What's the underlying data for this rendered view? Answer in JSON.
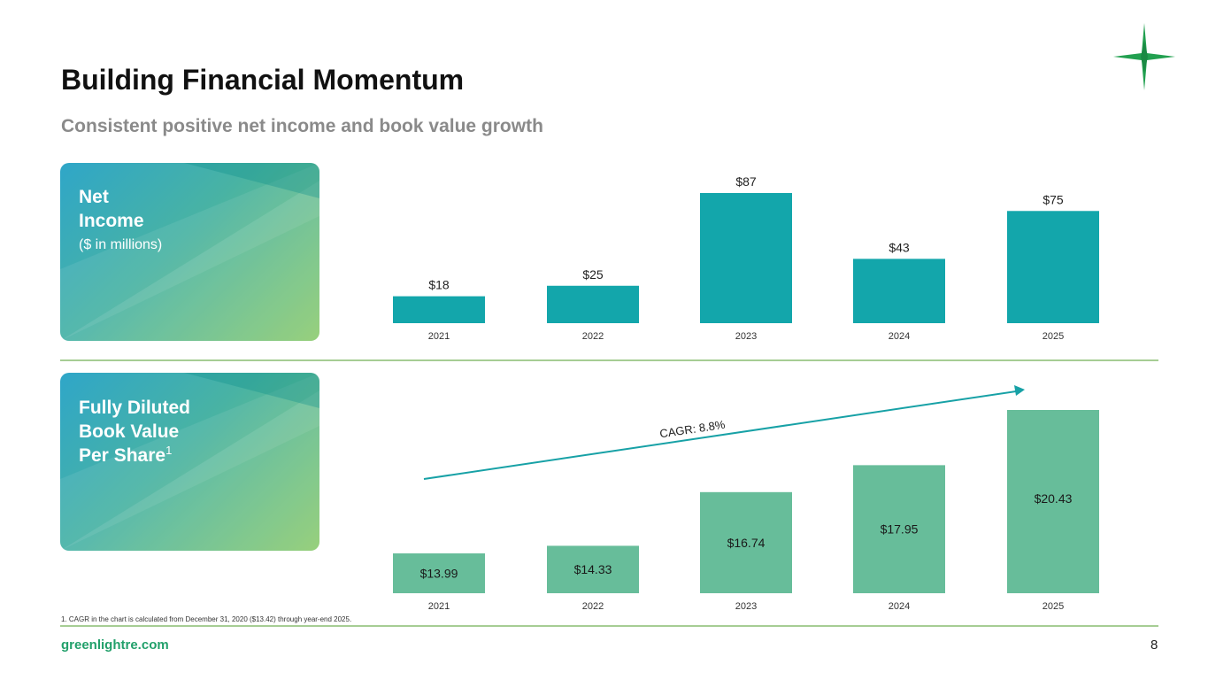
{
  "page": {
    "title": "Building Financial Momentum",
    "subtitle": "Consistent positive net income and book value growth",
    "footnote": "1.  CAGR in the chart is calculated from December 31, 2020 ($13.42) through year-end 2025.",
    "url": "greenlightre.com",
    "page_number": "8"
  },
  "cards": {
    "net_income": {
      "line1": "Net",
      "line2": "Income",
      "sub": "($ in millions)"
    },
    "book_value": {
      "line1": "Fully Diluted",
      "line2": "Book Value",
      "line3": "Per Share",
      "sup": "1"
    }
  },
  "colors": {
    "teal": "#13a6ab",
    "green": "#67bd9a",
    "divider": "#a6cd94",
    "brand": "#22a06b",
    "arrow": "#17a1a6"
  },
  "chart_data": [
    {
      "type": "bar",
      "title": "Net Income ($ in millions)",
      "categories": [
        "2021",
        "2022",
        "2023",
        "2024",
        "2025"
      ],
      "values": [
        18,
        25,
        87,
        43,
        75
      ],
      "labels": [
        "$18",
        "$25",
        "$87",
        "$43",
        "$75"
      ],
      "ylim": [
        0,
        87
      ],
      "label_position": "above"
    },
    {
      "type": "bar",
      "title": "Fully Diluted Book Value Per Share",
      "categories": [
        "2021",
        "2022",
        "2023",
        "2024",
        "2025"
      ],
      "values": [
        13.99,
        14.33,
        16.74,
        17.95,
        20.43
      ],
      "labels": [
        "$13.99",
        "$14.33",
        "$16.74",
        "$17.95",
        "$20.43"
      ],
      "ylim": [
        12.2,
        20.43
      ],
      "label_position": "inside",
      "annotation": "CAGR: 8.8%"
    }
  ]
}
